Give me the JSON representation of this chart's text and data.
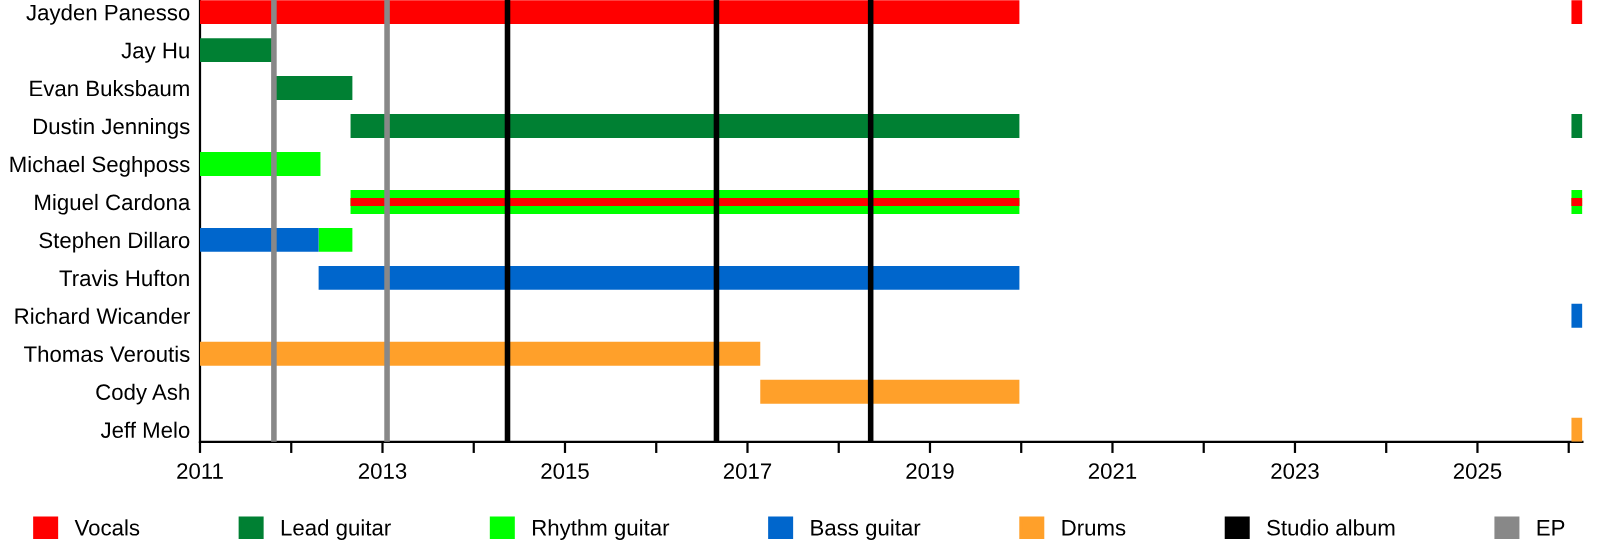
{
  "chart_data": {
    "type": "bar",
    "orientation": "horizontal",
    "categories": [
      "Jayden Panesso",
      "Jay Hu",
      "Evan Buksbaum",
      "Dustin Jennings",
      "Michael Seghposs",
      "Miguel Cardona",
      "Stephen Dillaro",
      "Travis Hufton",
      "Richard Wicander",
      "Thomas Veroutis",
      "Cody Ash",
      "Jeff Melo"
    ],
    "series": [
      {
        "name": "Vocals",
        "color": "#ff0000",
        "base": [
          2011,
          null,
          null,
          null,
          null,
          2012.65,
          null,
          null,
          null,
          null,
          null,
          null
        ],
        "values": [
          8.98,
          null,
          null,
          null,
          null,
          7.33,
          null,
          null,
          null,
          null,
          null,
          null
        ]
      },
      {
        "name": "Lead guitar",
        "color": "#008033",
        "base": [
          null,
          2011,
          2011.81,
          2012.65,
          null,
          null,
          null,
          null,
          null,
          null,
          null,
          null
        ],
        "values": [
          null,
          0.83,
          0.86,
          7.33,
          null,
          null,
          null,
          null,
          null,
          null,
          null,
          null
        ]
      },
      {
        "name": "Rhythm guitar",
        "color": "#00ff00",
        "base": [
          null,
          null,
          null,
          null,
          2011,
          2012.65,
          2012.3,
          null,
          null,
          null,
          null,
          null
        ],
        "values": [
          null,
          null,
          null,
          null,
          1.32,
          7.33,
          0.37,
          null,
          null,
          null,
          null,
          null
        ]
      },
      {
        "name": "Bass guitar",
        "color": "#0066cc",
        "base": [
          null,
          null,
          null,
          null,
          null,
          null,
          2011,
          2012.3,
          null,
          null,
          null,
          null
        ],
        "values": [
          null,
          null,
          null,
          null,
          null,
          null,
          1.3,
          7.68,
          null,
          null,
          null,
          null
        ]
      },
      {
        "name": "Drums",
        "color": "#ffa02a",
        "base": [
          null,
          null,
          null,
          null,
          null,
          null,
          null,
          null,
          null,
          2011,
          2017.14,
          null
        ],
        "values": [
          null,
          null,
          null,
          null,
          null,
          null,
          null,
          null,
          null,
          6.14,
          2.84,
          null
        ]
      },
      {
        "color": "#ff0000",
        "base": [
          2026.03,
          null,
          null,
          null,
          null,
          2026.03,
          null,
          null,
          null,
          null,
          null,
          null
        ],
        "values": [
          0.12,
          null,
          null,
          null,
          null,
          0.12,
          null,
          null,
          null,
          null,
          null,
          null
        ]
      },
      {
        "color": "#008033",
        "base": [
          null,
          null,
          null,
          2026.03,
          null,
          null,
          null,
          null,
          null,
          null,
          null,
          null
        ],
        "values": [
          null,
          null,
          null,
          0.12,
          null,
          null,
          null,
          null,
          null,
          null,
          null,
          null
        ]
      },
      {
        "color": "#00ff00",
        "base": [
          null,
          null,
          null,
          null,
          null,
          2026.03,
          null,
          null,
          null,
          null,
          null,
          null
        ],
        "values": [
          null,
          null,
          null,
          null,
          null,
          0.12,
          null,
          null,
          null,
          null,
          null,
          null
        ]
      },
      {
        "color": "#0066cc",
        "base": [
          null,
          null,
          null,
          null,
          null,
          null,
          null,
          null,
          2026.03,
          null,
          null,
          null
        ],
        "values": [
          null,
          null,
          null,
          null,
          null,
          null,
          null,
          null,
          0.12,
          null,
          null,
          null
        ]
      },
      {
        "color": "#ffa02a",
        "base": [
          null,
          null,
          null,
          null,
          null,
          null,
          null,
          null,
          null,
          null,
          null,
          2026.03
        ],
        "values": [
          null,
          null,
          null,
          null,
          null,
          null,
          null,
          null,
          null,
          null,
          null,
          0.12
        ]
      }
    ],
    "ref_lines": [
      {
        "axis": "x",
        "value": 2014.37,
        "label": "Studio album",
        "color": "#000000"
      },
      {
        "axis": "x",
        "value": 2016.66,
        "color": "#000000"
      },
      {
        "axis": "x",
        "value": 2018.35,
        "color": "#000000"
      },
      {
        "axis": "x",
        "value": 2011.81,
        "label": "EP",
        "color": "#888888"
      },
      {
        "axis": "x",
        "value": 2013.05,
        "color": "#888888"
      }
    ],
    "xlim": [
      2011,
      2026.15
    ],
    "xticks": [
      2011,
      {
        "value": 2012,
        "label": null
      },
      2013,
      {
        "value": 2014,
        "label": null
      },
      2015,
      {
        "value": 2016,
        "label": null
      },
      2017,
      {
        "value": 2018,
        "label": null
      },
      2019,
      {
        "value": 2020,
        "label": null
      },
      2021,
      {
        "value": 2022,
        "label": null
      },
      2023,
      {
        "value": 2024,
        "label": null
      },
      2025,
      {
        "value": 2026,
        "label": null
      }
    ],
    "grid": false,
    "legend": "bottom"
  }
}
